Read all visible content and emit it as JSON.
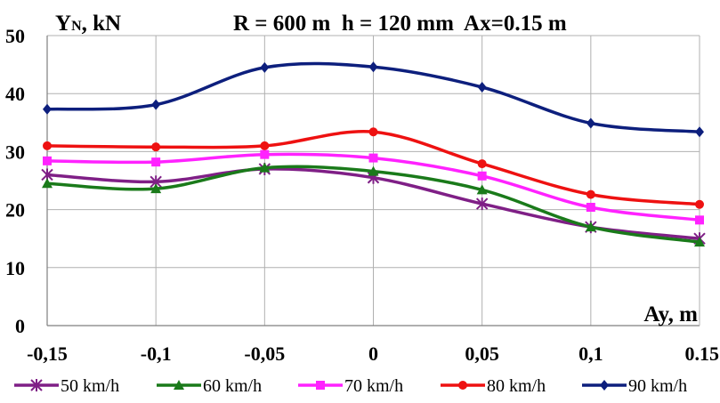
{
  "chart_data": {
    "type": "line",
    "title": "R = 600 m  h = 120 mm  Ax=0.15 m",
    "ylabel": {
      "main": "Y",
      "sub": "N",
      "rest": ", kN"
    },
    "xlabel": "Ay, m",
    "x": [
      -0.15,
      -0.1,
      -0.05,
      0,
      0.05,
      0.1,
      0.15
    ],
    "x_tick_labels": [
      "-0,15",
      "-0,1",
      "-0,05",
      "0",
      "0,05",
      "0,1",
      "0.15"
    ],
    "ylim": [
      0,
      50
    ],
    "y_ticks": [
      0,
      10,
      20,
      30,
      40,
      50
    ],
    "y_tick_labels": [
      "0",
      "10",
      "20",
      "30",
      "40",
      "50"
    ],
    "grid": true,
    "legend_position": "bottom",
    "series": [
      {
        "name": "50 km/h",
        "color": "#7f1f86",
        "marker": "asterisk",
        "values": [
          26.0,
          24.8,
          27.0,
          25.5,
          21.0,
          17.0,
          15.0
        ]
      },
      {
        "name": "60 km/h",
        "color": "#1a7a1a",
        "marker": "triangle",
        "values": [
          24.5,
          23.6,
          27.2,
          26.6,
          23.4,
          17.0,
          14.4
        ]
      },
      {
        "name": "70 km/h",
        "color": "#ff22ff",
        "marker": "square",
        "values": [
          28.4,
          28.2,
          29.5,
          28.9,
          25.8,
          20.4,
          18.2
        ]
      },
      {
        "name": "80 km/h",
        "color": "#ee1111",
        "marker": "circle",
        "values": [
          31.0,
          30.8,
          31.0,
          33.4,
          27.9,
          22.6,
          20.9
        ]
      },
      {
        "name": "90 km/h",
        "color": "#0d1f7d",
        "marker": "diamond",
        "values": [
          37.3,
          38.1,
          44.5,
          44.6,
          41.1,
          34.9,
          33.4
        ]
      }
    ]
  }
}
